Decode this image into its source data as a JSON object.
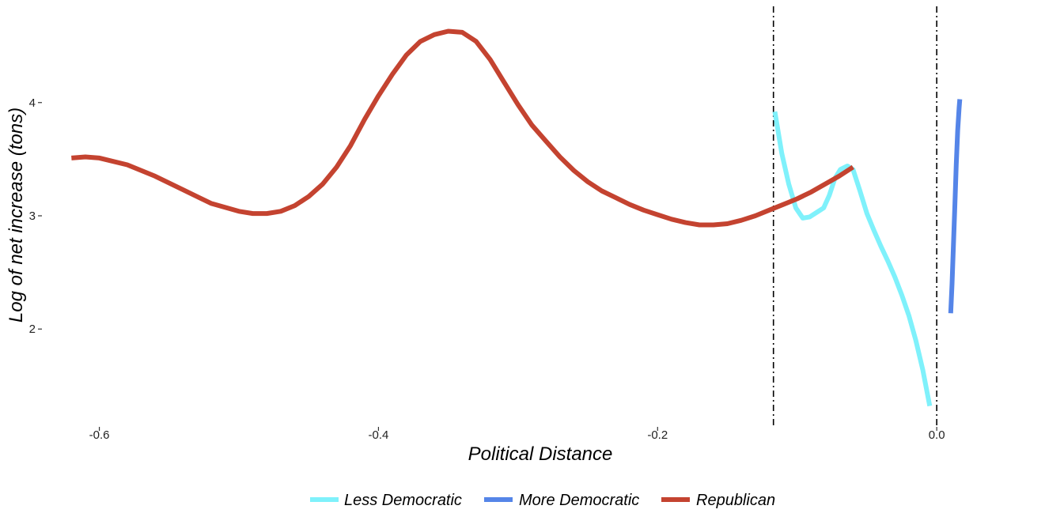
{
  "chart_data": {
    "type": "line",
    "xlabel": "Political Distance",
    "ylabel": "Log of net increase (tons)",
    "xlim": [
      -0.64,
      0.06
    ],
    "ylim": [
      1.15,
      4.85
    ],
    "x_ticks": [
      {
        "value": -0.6,
        "label": "-0.6"
      },
      {
        "value": -0.4,
        "label": "-0.4"
      },
      {
        "value": -0.2,
        "label": "-0.2"
      },
      {
        "value": 0.0,
        "label": "0.0"
      }
    ],
    "y_ticks": [
      {
        "value": 2,
        "label": "2"
      },
      {
        "value": 3,
        "label": "3"
      },
      {
        "value": 4,
        "label": "4"
      }
    ],
    "grid": false,
    "legend_position": "bottom",
    "reference_lines": [
      {
        "x": -0.117,
        "style": "dashdot",
        "color": "#000000"
      },
      {
        "x": 0.0,
        "style": "dashdot",
        "color": "#000000"
      }
    ],
    "series": [
      {
        "name": "Less Democratic",
        "color": "#7FF1FB",
        "points": [
          [
            -0.116,
            3.92
          ],
          [
            -0.111,
            3.55
          ],
          [
            -0.106,
            3.28
          ],
          [
            -0.101,
            3.07
          ],
          [
            -0.096,
            2.98
          ],
          [
            -0.091,
            2.99
          ],
          [
            -0.086,
            3.03
          ],
          [
            -0.081,
            3.07
          ],
          [
            -0.077,
            3.18
          ],
          [
            -0.073,
            3.33
          ],
          [
            -0.069,
            3.41
          ],
          [
            -0.064,
            3.44
          ],
          [
            -0.06,
            3.41
          ],
          [
            -0.055,
            3.22
          ],
          [
            -0.05,
            3.02
          ],
          [
            -0.045,
            2.87
          ],
          [
            -0.04,
            2.73
          ],
          [
            -0.035,
            2.6
          ],
          [
            -0.03,
            2.46
          ],
          [
            -0.025,
            2.3
          ],
          [
            -0.02,
            2.12
          ],
          [
            -0.015,
            1.9
          ],
          [
            -0.01,
            1.64
          ],
          [
            -0.005,
            1.32
          ]
        ]
      },
      {
        "name": "More Democratic",
        "color": "#5585E8",
        "points": [
          [
            0.01,
            2.14
          ],
          [
            0.011,
            2.4
          ],
          [
            0.012,
            2.75
          ],
          [
            0.013,
            3.1
          ],
          [
            0.014,
            3.45
          ],
          [
            0.015,
            3.75
          ],
          [
            0.016,
            3.95
          ],
          [
            0.0165,
            4.03
          ]
        ]
      },
      {
        "name": "Republican",
        "color": "#C44330",
        "points": [
          [
            -0.62,
            3.51
          ],
          [
            -0.61,
            3.52
          ],
          [
            -0.6,
            3.51
          ],
          [
            -0.58,
            3.45
          ],
          [
            -0.56,
            3.35
          ],
          [
            -0.54,
            3.23
          ],
          [
            -0.52,
            3.11
          ],
          [
            -0.5,
            3.04
          ],
          [
            -0.49,
            3.02
          ],
          [
            -0.48,
            3.02
          ],
          [
            -0.47,
            3.04
          ],
          [
            -0.46,
            3.09
          ],
          [
            -0.45,
            3.17
          ],
          [
            -0.44,
            3.28
          ],
          [
            -0.43,
            3.43
          ],
          [
            -0.42,
            3.62
          ],
          [
            -0.41,
            3.85
          ],
          [
            -0.4,
            4.06
          ],
          [
            -0.39,
            4.25
          ],
          [
            -0.38,
            4.42
          ],
          [
            -0.37,
            4.54
          ],
          [
            -0.36,
            4.6
          ],
          [
            -0.35,
            4.63
          ],
          [
            -0.34,
            4.62
          ],
          [
            -0.33,
            4.54
          ],
          [
            -0.32,
            4.38
          ],
          [
            -0.31,
            4.18
          ],
          [
            -0.3,
            3.98
          ],
          [
            -0.29,
            3.8
          ],
          [
            -0.28,
            3.66
          ],
          [
            -0.27,
            3.52
          ],
          [
            -0.26,
            3.4
          ],
          [
            -0.25,
            3.3
          ],
          [
            -0.24,
            3.22
          ],
          [
            -0.23,
            3.16
          ],
          [
            -0.22,
            3.1
          ],
          [
            -0.21,
            3.05
          ],
          [
            -0.2,
            3.01
          ],
          [
            -0.19,
            2.97
          ],
          [
            -0.18,
            2.94
          ],
          [
            -0.17,
            2.92
          ],
          [
            -0.16,
            2.92
          ],
          [
            -0.15,
            2.93
          ],
          [
            -0.14,
            2.96
          ],
          [
            -0.13,
            3.0
          ],
          [
            -0.12,
            3.05
          ],
          [
            -0.11,
            3.1
          ],
          [
            -0.1,
            3.15
          ],
          [
            -0.09,
            3.21
          ],
          [
            -0.08,
            3.28
          ],
          [
            -0.07,
            3.35
          ],
          [
            -0.06,
            3.43
          ]
        ]
      }
    ]
  }
}
